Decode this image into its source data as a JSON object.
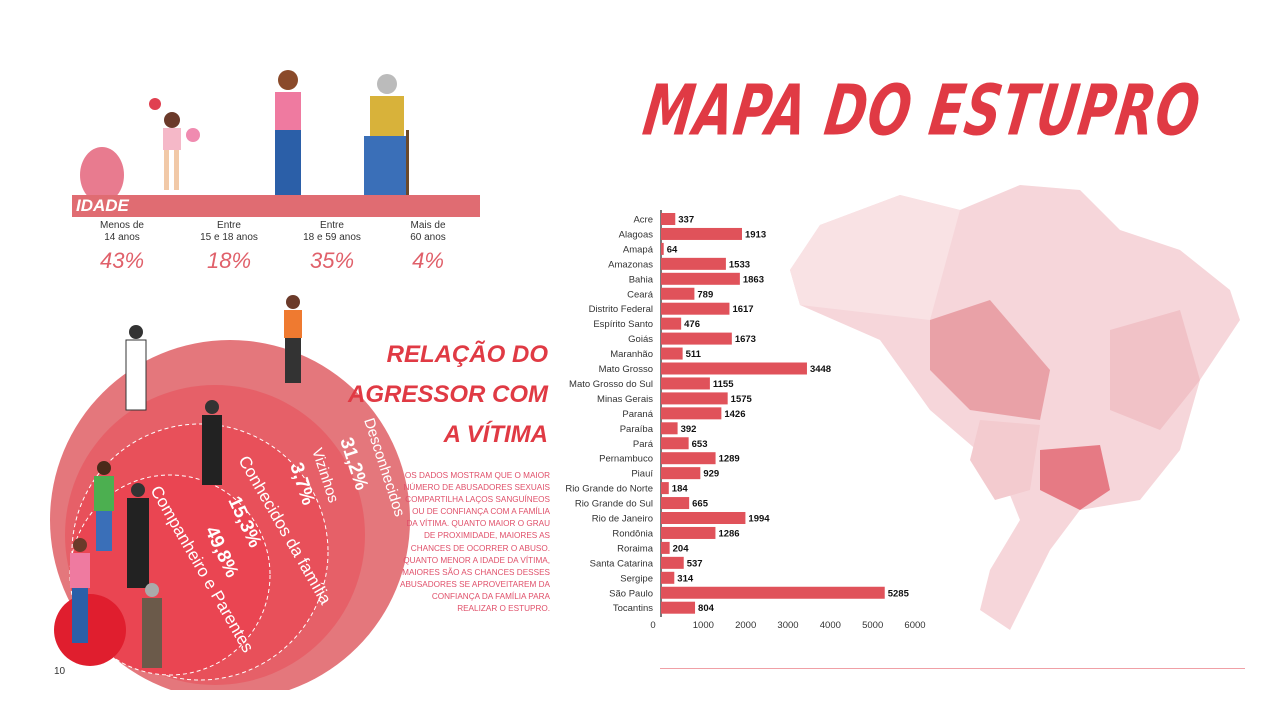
{
  "title": "MAPA DO ESTUPRO",
  "page_number": "10",
  "age": {
    "band_label": "IDADE",
    "groups": [
      {
        "line1": "Menos de",
        "line2": "14 anos",
        "pct": "43%"
      },
      {
        "line1": "Entre",
        "line2": "15 e 18  anos",
        "pct": "18%"
      },
      {
        "line1": "Entre",
        "line2": "18 e 59 anos",
        "pct": "35%"
      },
      {
        "line1": "Mais de",
        "line2": "60 anos",
        "pct": "4%"
      }
    ]
  },
  "relation": {
    "title_lines": [
      "RELAÇÃO DO",
      "AGRESSOR COM",
      "A VÍTIMA"
    ],
    "rings": [
      {
        "label": "Desconhecidos",
        "pct": "31,2%"
      },
      {
        "label": "Vizinhos",
        "pct": "3,7%"
      },
      {
        "label": "Conhecidos da família",
        "pct": "15,3%"
      },
      {
        "label": "Companheiro e Parentes",
        "pct": "49,8%"
      }
    ],
    "paragraph": "Os dados mostram que o maior número de abusadores sexuais compartilha laços sanguíneos ou de confiança com a família da vítima. Quanto maior o grau de proximidade, maiores as chances de ocorrer o abuso. Quanto menor a idade da vítima, maiores são as chances desses abusadores  se aproveitarem da confiança da família para realizar o estupro."
  },
  "colors": {
    "accent": "#e03a44",
    "bar": "#e0525a",
    "ring_outer": "#e4777c",
    "ring_inner": "#e8505a"
  },
  "chart_data": {
    "type": "bar",
    "orientation": "horizontal",
    "categories": [
      "Acre",
      "Alagoas",
      "Amapá",
      "Amazonas",
      "Bahia",
      "Ceará",
      "Distrito Federal",
      "Espírito Santo",
      "Goiás",
      "Maranhão",
      "Mato Grosso",
      "Mato Grosso do Sul",
      "Minas Gerais",
      "Paraná",
      "Paraíba",
      "Pará",
      "Pernambuco",
      "Piauí",
      "Rio Grande do Norte",
      "Rio Grande do Sul",
      "Rio de Janeiro",
      "Rondônia",
      "Roraima",
      "Santa Catarina",
      "Sergipe",
      "São Paulo",
      "Tocantins"
    ],
    "values": [
      337,
      1913,
      64,
      1533,
      1863,
      789,
      1617,
      476,
      1673,
      511,
      3448,
      1155,
      1575,
      1426,
      392,
      653,
      1289,
      929,
      184,
      665,
      1994,
      1286,
      204,
      537,
      314,
      5285,
      804
    ],
    "xlim": [
      0,
      6000
    ],
    "xticks": [
      "0",
      "1000",
      "2000",
      "3000",
      "4000",
      "5000",
      "6000"
    ],
    "title": "",
    "xlabel": "",
    "ylabel": ""
  }
}
